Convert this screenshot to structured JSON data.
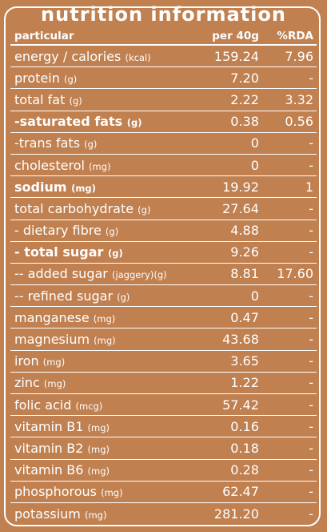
{
  "title": "nutrition information",
  "header": {
    "particular": "particular",
    "per": "per 40g",
    "rda": "%RDA"
  },
  "rows": [
    {
      "name": "energy / calories",
      "unit": "(kcal)",
      "value": "159.24",
      "rda": "7.96",
      "bold": false
    },
    {
      "name": "protein",
      "unit": "(g)",
      "value": "7.20",
      "rda": "-",
      "bold": false
    },
    {
      "name": "total fat",
      "unit": "(g)",
      "value": "2.22",
      "rda": "3.32",
      "bold": false
    },
    {
      "name": "-saturated fats",
      "unit": "(g)",
      "value": "0.38",
      "rda": "0.56",
      "bold": true
    },
    {
      "name": "-trans fats",
      "unit": "(g)",
      "value": "0",
      "rda": "-",
      "bold": false
    },
    {
      "name": "cholesterol",
      "unit": "(mg)",
      "value": "0",
      "rda": "-",
      "bold": false
    },
    {
      "name": "sodium",
      "unit": "(mg)",
      "value": "19.92",
      "rda": "1",
      "bold": true
    },
    {
      "name": "total carbohydrate",
      "unit": "(g)",
      "value": "27.64",
      "rda": "-",
      "bold": false
    },
    {
      "name": "- dietary fibre",
      "unit": "(g)",
      "value": "4.88",
      "rda": "-",
      "bold": false
    },
    {
      "name": "- total sugar",
      "unit": "(g)",
      "value": "9.26",
      "rda": "-",
      "bold": true
    },
    {
      "name": "-- added sugar",
      "unit": "(jaggery)(g)",
      "value": "8.81",
      "rda": "17.60",
      "bold": false
    },
    {
      "name": "-- refined sugar",
      "unit": "(g)",
      "value": "0",
      "rda": "-",
      "bold": false
    },
    {
      "name": "manganese",
      "unit": "(mg)",
      "value": "0.47",
      "rda": "-",
      "bold": false
    },
    {
      "name": "magnesium",
      "unit": "(mg)",
      "value": "43.68",
      "rda": "-",
      "bold": false
    },
    {
      "name": "iron",
      "unit": "(mg)",
      "value": "3.65",
      "rda": "-",
      "bold": false
    },
    {
      "name": "zinc",
      "unit": "(mg)",
      "value": "1.22",
      "rda": "-",
      "bold": false
    },
    {
      "name": "folic acid",
      "unit": "(mcg)",
      "value": "57.42",
      "rda": "-",
      "bold": false
    },
    {
      "name": "vitamin B1",
      "unit": "(mg)",
      "value": "0.16",
      "rda": "-",
      "bold": false
    },
    {
      "name": "vitamin B2",
      "unit": "(mg)",
      "value": "0.18",
      "rda": "-",
      "bold": false
    },
    {
      "name": "vitamin B6",
      "unit": "(mg)",
      "value": "0.28",
      "rda": "-",
      "bold": false
    },
    {
      "name": "phosphorous",
      "unit": "(mg)",
      "value": "62.47",
      "rda": "-",
      "bold": false
    },
    {
      "name": "potassium",
      "unit": "(mg)",
      "value": "281.20",
      "rda": "-",
      "bold": false
    }
  ],
  "colors": {
    "background": "#c08050",
    "text": "#ffffff"
  }
}
